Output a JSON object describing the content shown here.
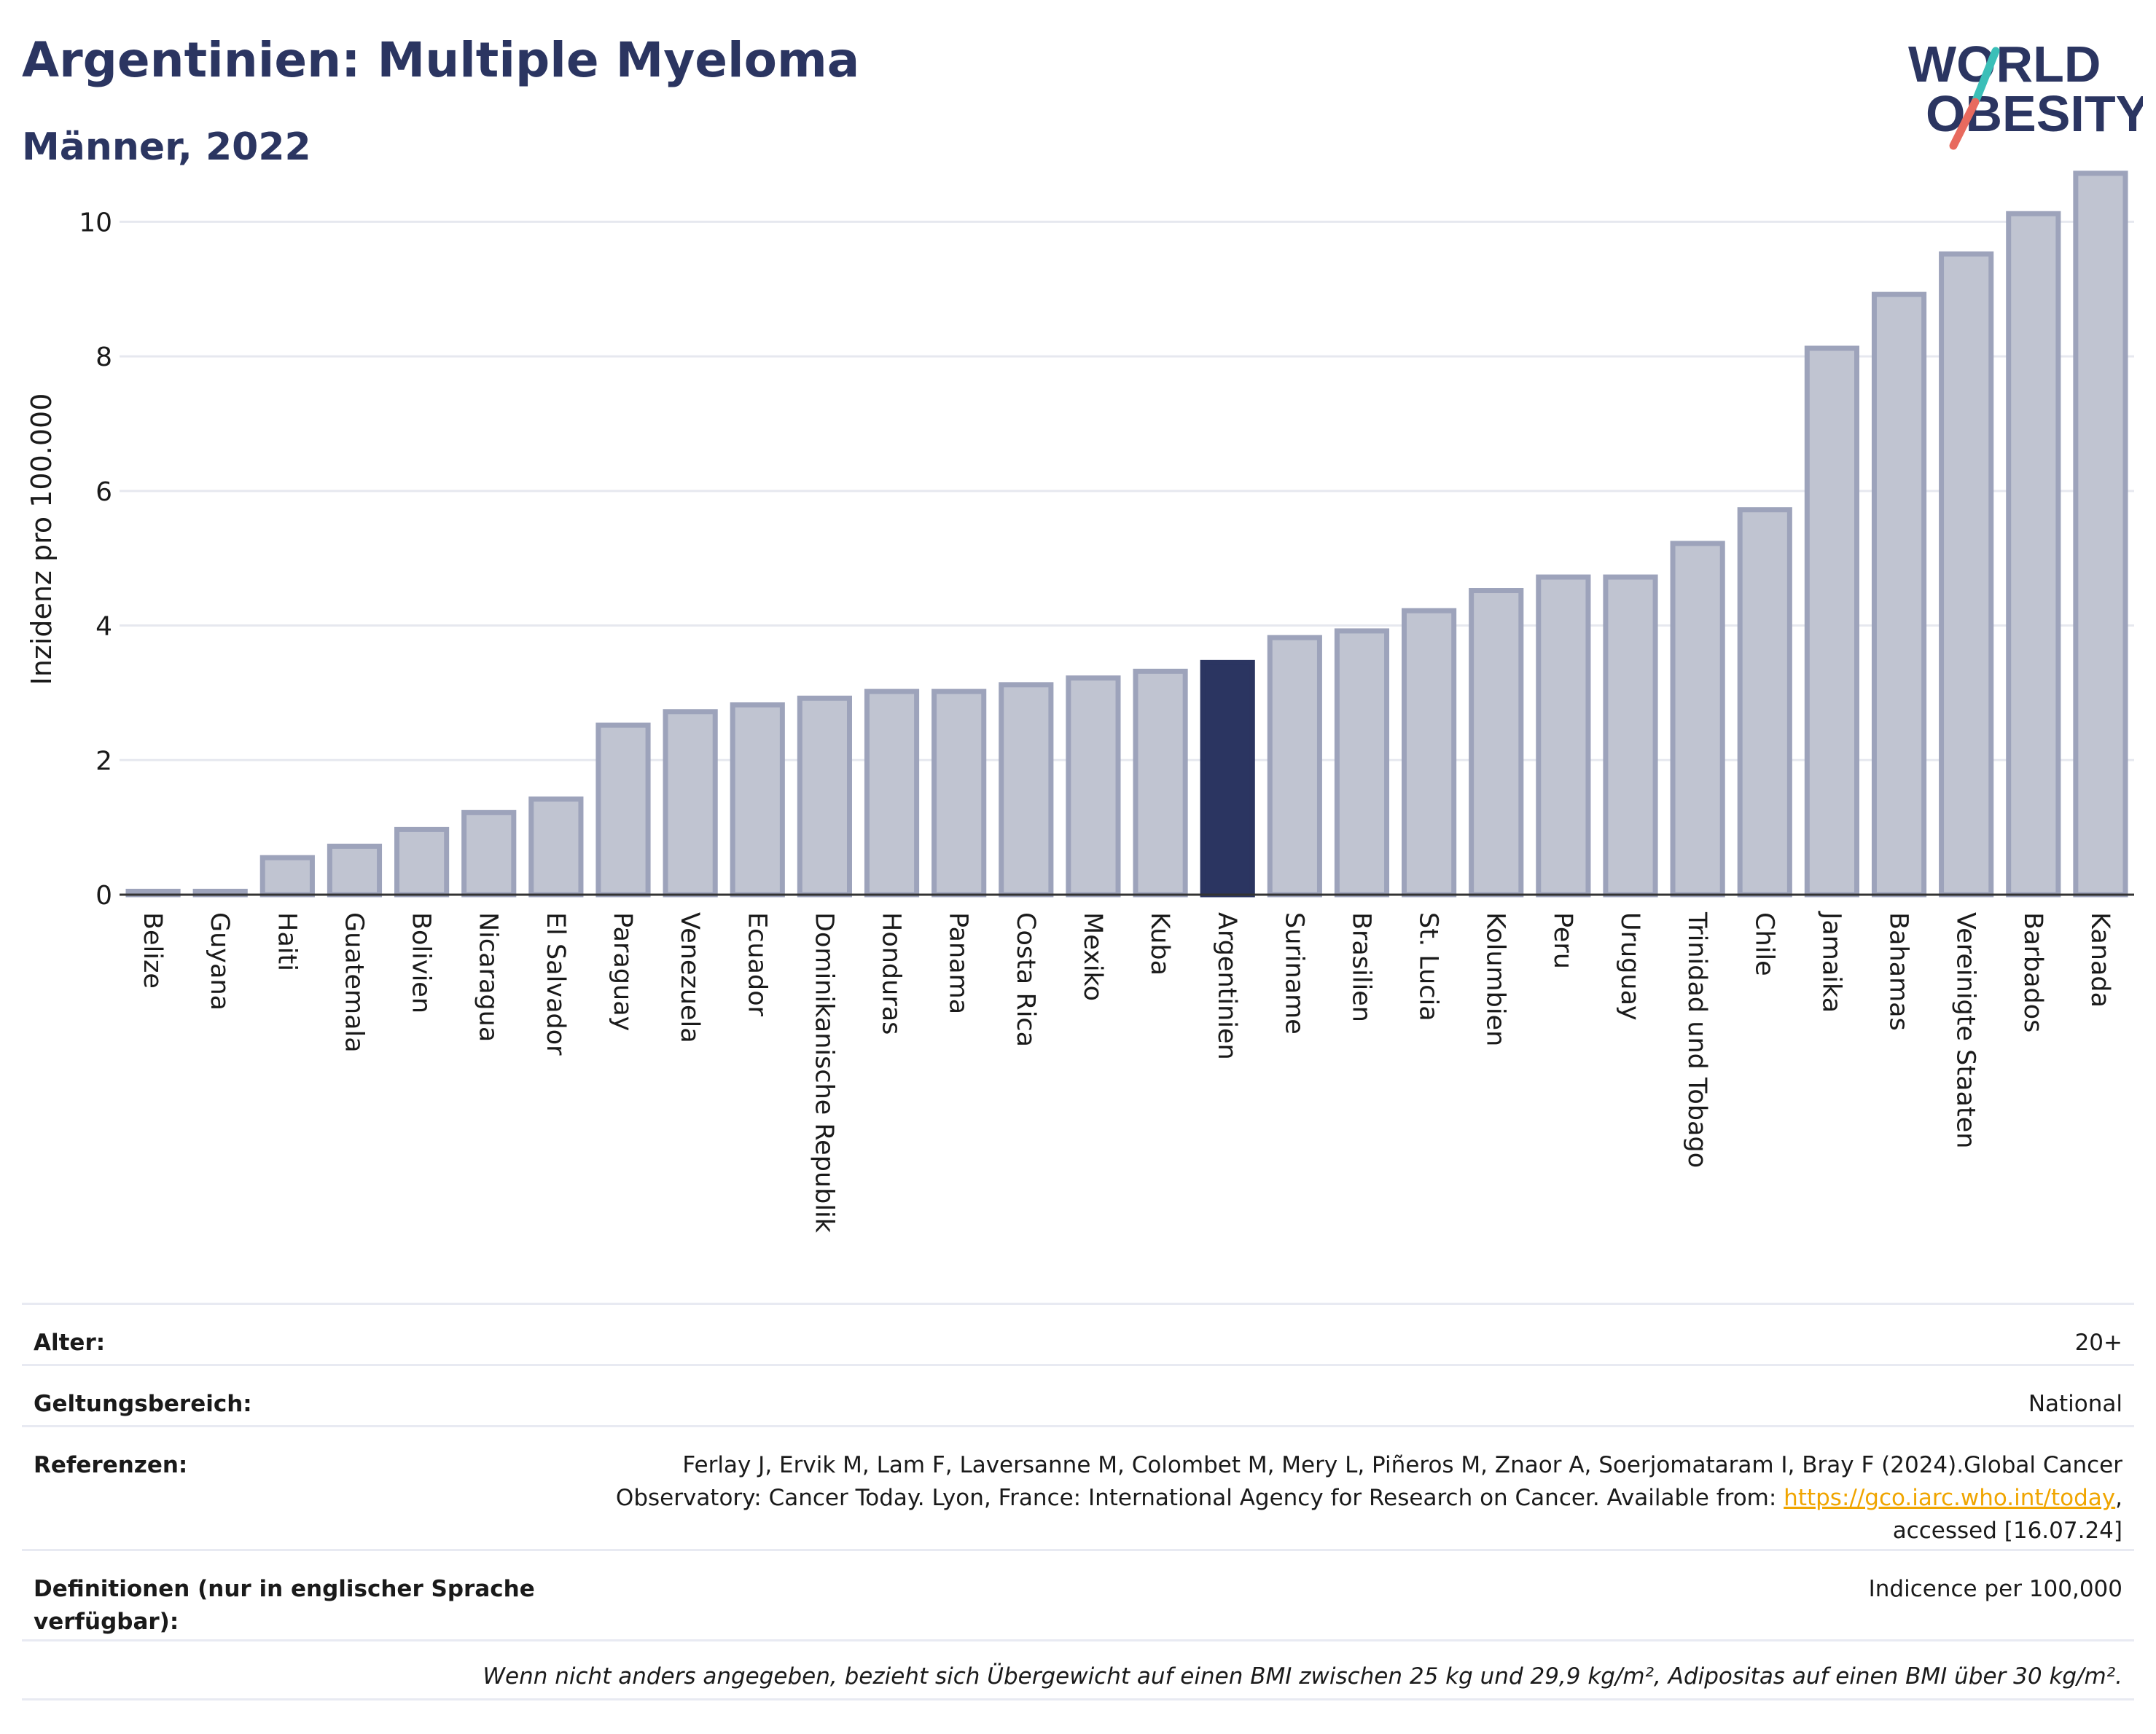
{
  "header": {
    "title": "Argentinien: Multiple Myeloma",
    "subtitle": "Männer, 2022"
  },
  "logo": {
    "line1": "WORLD",
    "line2": "OBESITY"
  },
  "chart_data": {
    "type": "bar",
    "ylabel": "Inzidenz pro 100.000",
    "ylim": [
      0,
      11
    ],
    "yticks": [
      0,
      2,
      4,
      6,
      8,
      10
    ],
    "grid": true,
    "highlight": "Argentinien",
    "colors": {
      "bar": "#c0c4d1",
      "bar_edge": "#9da3bb",
      "highlight": "#2b3561"
    },
    "categories": [
      "Belize",
      "Guyana",
      "Haiti",
      "Guatemala",
      "Bolivien",
      "Nicaragua",
      "El Salvador",
      "Paraguay",
      "Venezuela",
      "Ecuador",
      "Dominikanische Republik",
      "Honduras",
      "Panama",
      "Costa Rica",
      "Mexiko",
      "Kuba",
      "Argentinien",
      "Suriname",
      "Brasilien",
      "St. Lucia",
      "Kolumbien",
      "Peru",
      "Uruguay",
      "Trinidad und Tobago",
      "Chile",
      "Jamaika",
      "Bahamas",
      "Vereinigte Staaten",
      "Barbados",
      "Kanada"
    ],
    "values": [
      0.05,
      0.05,
      0.55,
      0.72,
      0.97,
      1.22,
      1.42,
      2.52,
      2.72,
      2.82,
      2.92,
      3.02,
      3.02,
      3.12,
      3.22,
      3.32,
      3.45,
      3.82,
      3.92,
      4.22,
      4.52,
      4.72,
      4.72,
      5.22,
      5.72,
      8.12,
      8.92,
      9.52,
      10.12,
      10.72
    ]
  },
  "info": {
    "age_label": "Alter:",
    "age_value": "20+",
    "scope_label": "Geltungsbereich:",
    "scope_value": "National",
    "ref_label": "Referenzen:",
    "ref_text_before": "Ferlay J, Ervik M, Lam F, Laversanne M, Colombet M, Mery L, Piñeros M, Znaor A, Soerjomataram I, Bray F (2024).Global Cancer Observatory: Cancer Today. Lyon, France: International Agency for Research on Cancer. Available from: ",
    "ref_link": "https://gco.iarc.who.int/today",
    "ref_text_after": ", accessed [16.07.24]",
    "def_label": "Definitionen (nur in englischer Sprache verfügbar):",
    "def_value": "Indicence per 100,000",
    "footnote": "Wenn nicht anders angegeben, bezieht sich Übergewicht auf einen BMI zwischen 25 kg und 29,9 kg/m², Adipositas auf einen BMI über 30 kg/m²."
  }
}
